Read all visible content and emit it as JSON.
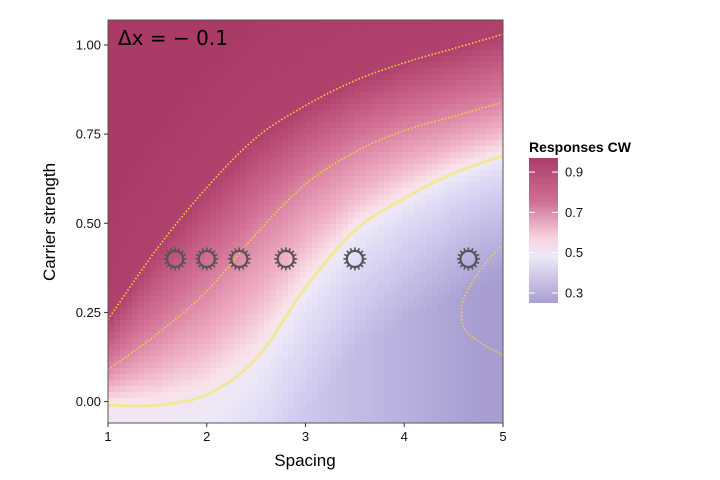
{
  "chart_data": {
    "type": "heatmap",
    "xlabel": "Spacing",
    "ylabel": "Carrier strength",
    "xlim": [
      1,
      5
    ],
    "ylim": [
      -0.06,
      1.07
    ],
    "x_ticks": [
      1,
      2,
      3,
      4,
      5
    ],
    "x_tick_labels": [
      "1",
      "2",
      "3",
      "4",
      "5"
    ],
    "y_ticks": [
      0.0,
      0.25,
      0.5,
      0.75,
      1.0
    ],
    "y_tick_labels": [
      "0.00",
      "0.25",
      "0.50",
      "0.75",
      "1.00"
    ],
    "annotation": "Δx = − 0.1",
    "legend": {
      "title": "Responses CW",
      "position": "right",
      "breaks": [
        0.9,
        0.7,
        0.5,
        0.3
      ],
      "labels": [
        "0.9",
        "0.7",
        "0.5",
        "0.3"
      ],
      "range": [
        0.25,
        0.97
      ],
      "colors": {
        "low": "#a096cc",
        "mid_low": "#e6e2f8",
        "mid": "#f8dde6",
        "mid_high": "#d88aa6",
        "high": "#ad3d6b"
      }
    },
    "contours": [
      {
        "level": 0.5,
        "color": "#f2e88a",
        "style": "solid",
        "points": [
          [
            1.0,
            -0.01
          ],
          [
            1.5,
            -0.01
          ],
          [
            2.0,
            0.02
          ],
          [
            2.5,
            0.12
          ],
          [
            3.0,
            0.32
          ],
          [
            3.5,
            0.48
          ],
          [
            4.0,
            0.57
          ],
          [
            4.5,
            0.64
          ],
          [
            5.0,
            0.69
          ]
        ]
      },
      {
        "level": 0.7,
        "color": "#f5d23a",
        "style": "dotted",
        "points": [
          [
            1.0,
            0.09
          ],
          [
            1.5,
            0.19
          ],
          [
            2.0,
            0.31
          ],
          [
            2.5,
            0.47
          ],
          [
            3.0,
            0.61
          ],
          [
            3.5,
            0.7
          ],
          [
            4.0,
            0.76
          ],
          [
            4.5,
            0.8
          ],
          [
            5.0,
            0.84
          ]
        ]
      },
      {
        "level": 0.9,
        "color": "#f5d23a",
        "style": "dotted",
        "points": [
          [
            1.0,
            0.23
          ],
          [
            1.5,
            0.43
          ],
          [
            2.0,
            0.6
          ],
          [
            2.5,
            0.74
          ],
          [
            3.0,
            0.83
          ],
          [
            3.5,
            0.9
          ],
          [
            4.0,
            0.95
          ],
          [
            4.5,
            0.99
          ],
          [
            5.0,
            1.03
          ]
        ]
      },
      {
        "level": 0.3,
        "color": "#f5d23a",
        "style": "dotted",
        "points": [
          [
            5.0,
            0.44
          ],
          [
            4.8,
            0.38
          ],
          [
            4.62,
            0.3
          ],
          [
            4.58,
            0.25
          ],
          [
            4.62,
            0.2
          ],
          [
            4.8,
            0.16
          ],
          [
            5.0,
            0.13
          ]
        ]
      }
    ],
    "markers": {
      "type": "gear",
      "y": 0.4,
      "x": [
        1.68,
        2.0,
        2.33,
        2.8,
        3.5,
        4.65
      ]
    }
  }
}
